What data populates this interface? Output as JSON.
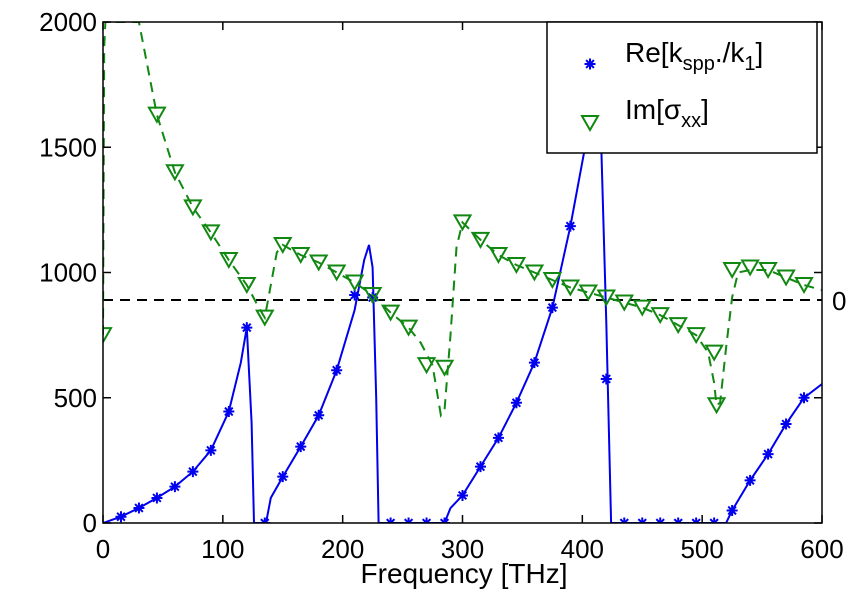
{
  "chart_data": {
    "type": "line",
    "xlabel": "Frequency [THz]",
    "xlim": [
      0,
      600
    ],
    "ylim": [
      0,
      2000
    ],
    "x_ticks": [
      0,
      100,
      200,
      300,
      400,
      500,
      600
    ],
    "y_ticks": [
      0,
      500,
      1000,
      1500,
      2000
    ],
    "x_tick_labels": [
      "0",
      "100",
      "200",
      "300",
      "400",
      "500",
      "600"
    ],
    "y_tick_labels": [
      "0",
      "500",
      "1000",
      "1500",
      "2000"
    ],
    "right_axis_label": "0",
    "right_axis_zero_at": 890,
    "grid": false,
    "legend_position": "top-right",
    "legend": [
      {
        "main": "Re[k",
        "sub": "spp",
        "mid": "./k",
        "sub2": "1",
        "end": "]"
      },
      {
        "main": "Im[σ",
        "sub": "xx",
        "end": "]"
      }
    ],
    "series": [
      {
        "name": "Re[kspp./k1]",
        "color": "#0000ee",
        "marker": "asterisk",
        "line": "solid",
        "curve": [
          [
            0,
            0
          ],
          [
            15,
            25
          ],
          [
            30,
            60
          ],
          [
            45,
            100
          ],
          [
            60,
            145
          ],
          [
            75,
            205
          ],
          [
            90,
            290
          ],
          [
            105,
            445
          ],
          [
            115,
            640
          ],
          [
            120,
            780
          ],
          [
            124,
            400
          ],
          [
            126,
            0
          ],
          [
            136,
            0
          ],
          [
            140,
            100
          ],
          [
            150,
            185
          ],
          [
            165,
            305
          ],
          [
            180,
            430
          ],
          [
            195,
            610
          ],
          [
            210,
            850
          ],
          [
            218,
            1050
          ],
          [
            222,
            1110
          ],
          [
            225,
            1020
          ],
          [
            228,
            500
          ],
          [
            230,
            0
          ],
          [
            285,
            0
          ],
          [
            290,
            60
          ],
          [
            300,
            110
          ],
          [
            315,
            225
          ],
          [
            330,
            340
          ],
          [
            345,
            480
          ],
          [
            360,
            640
          ],
          [
            375,
            860
          ],
          [
            390,
            1185
          ],
          [
            405,
            1570
          ],
          [
            412,
            1720
          ],
          [
            415,
            1640
          ],
          [
            420,
            800
          ],
          [
            424,
            0
          ],
          [
            520,
            0
          ],
          [
            525,
            50
          ],
          [
            540,
            170
          ],
          [
            555,
            275
          ],
          [
            570,
            395
          ],
          [
            585,
            500
          ],
          [
            600,
            555
          ]
        ],
        "markers": [
          [
            15,
            25
          ],
          [
            30,
            60
          ],
          [
            45,
            100
          ],
          [
            60,
            145
          ],
          [
            75,
            205
          ],
          [
            90,
            290
          ],
          [
            105,
            445
          ],
          [
            120,
            780
          ],
          [
            135,
            0
          ],
          [
            150,
            185
          ],
          [
            165,
            305
          ],
          [
            180,
            430
          ],
          [
            195,
            610
          ],
          [
            210,
            910
          ],
          [
            225,
            900
          ],
          [
            240,
            0
          ],
          [
            255,
            0
          ],
          [
            270,
            0
          ],
          [
            285,
            0
          ],
          [
            300,
            110
          ],
          [
            315,
            225
          ],
          [
            330,
            340
          ],
          [
            345,
            480
          ],
          [
            360,
            640
          ],
          [
            375,
            860
          ],
          [
            390,
            1185
          ],
          [
            405,
            1570
          ],
          [
            420,
            575
          ],
          [
            435,
            0
          ],
          [
            450,
            0
          ],
          [
            465,
            0
          ],
          [
            480,
            0
          ],
          [
            495,
            0
          ],
          [
            510,
            0
          ],
          [
            525,
            50
          ],
          [
            540,
            170
          ],
          [
            555,
            275
          ],
          [
            570,
            395
          ],
          [
            585,
            500
          ]
        ]
      },
      {
        "name": "Im[σxx]",
        "color": "#118811",
        "marker": "triangle-down",
        "line": "dashed",
        "curve": [
          [
            0,
            750
          ],
          [
            1,
            1900
          ],
          [
            2,
            2000
          ],
          [
            30,
            2000
          ],
          [
            45,
            1630
          ],
          [
            60,
            1400
          ],
          [
            75,
            1260
          ],
          [
            90,
            1160
          ],
          [
            105,
            1050
          ],
          [
            120,
            950
          ],
          [
            130,
            860
          ],
          [
            135,
            820
          ],
          [
            140,
            950
          ],
          [
            145,
            1080
          ],
          [
            150,
            1110
          ],
          [
            165,
            1070
          ],
          [
            180,
            1040
          ],
          [
            195,
            1000
          ],
          [
            210,
            960
          ],
          [
            225,
            910
          ],
          [
            240,
            840
          ],
          [
            255,
            780
          ],
          [
            265,
            720
          ],
          [
            275,
            630
          ],
          [
            282,
            430
          ],
          [
            285,
            450
          ],
          [
            290,
            750
          ],
          [
            295,
            1100
          ],
          [
            300,
            1200
          ],
          [
            315,
            1130
          ],
          [
            330,
            1070
          ],
          [
            345,
            1030
          ],
          [
            360,
            1000
          ],
          [
            375,
            970
          ],
          [
            390,
            940
          ],
          [
            405,
            920
          ],
          [
            420,
            900
          ],
          [
            435,
            880
          ],
          [
            450,
            860
          ],
          [
            465,
            830
          ],
          [
            480,
            790
          ],
          [
            495,
            750
          ],
          [
            505,
            680
          ],
          [
            510,
            560
          ],
          [
            512,
            470
          ],
          [
            515,
            480
          ],
          [
            520,
            700
          ],
          [
            525,
            900
          ],
          [
            530,
            1000
          ],
          [
            540,
            1010
          ],
          [
            555,
            1010
          ],
          [
            570,
            980
          ],
          [
            585,
            950
          ],
          [
            600,
            930
          ]
        ],
        "markers": [
          [
            0,
            750
          ],
          [
            45,
            1630
          ],
          [
            60,
            1400
          ],
          [
            75,
            1260
          ],
          [
            90,
            1160
          ],
          [
            105,
            1050
          ],
          [
            120,
            950
          ],
          [
            135,
            820
          ],
          [
            150,
            1110
          ],
          [
            165,
            1070
          ],
          [
            180,
            1040
          ],
          [
            195,
            1000
          ],
          [
            210,
            960
          ],
          [
            225,
            910
          ],
          [
            240,
            840
          ],
          [
            255,
            780
          ],
          [
            270,
            630
          ],
          [
            285,
            620
          ],
          [
            300,
            1200
          ],
          [
            315,
            1130
          ],
          [
            330,
            1070
          ],
          [
            345,
            1030
          ],
          [
            360,
            1000
          ],
          [
            375,
            970
          ],
          [
            390,
            940
          ],
          [
            405,
            920
          ],
          [
            420,
            900
          ],
          [
            435,
            880
          ],
          [
            450,
            860
          ],
          [
            465,
            830
          ],
          [
            480,
            790
          ],
          [
            495,
            750
          ],
          [
            510,
            680
          ],
          [
            512,
            470
          ],
          [
            525,
            1010
          ],
          [
            540,
            1020
          ],
          [
            555,
            1010
          ],
          [
            570,
            980
          ],
          [
            585,
            950
          ]
        ]
      }
    ],
    "reference_line": {
      "y": 890,
      "style": "dashed",
      "color": "#000000"
    }
  }
}
